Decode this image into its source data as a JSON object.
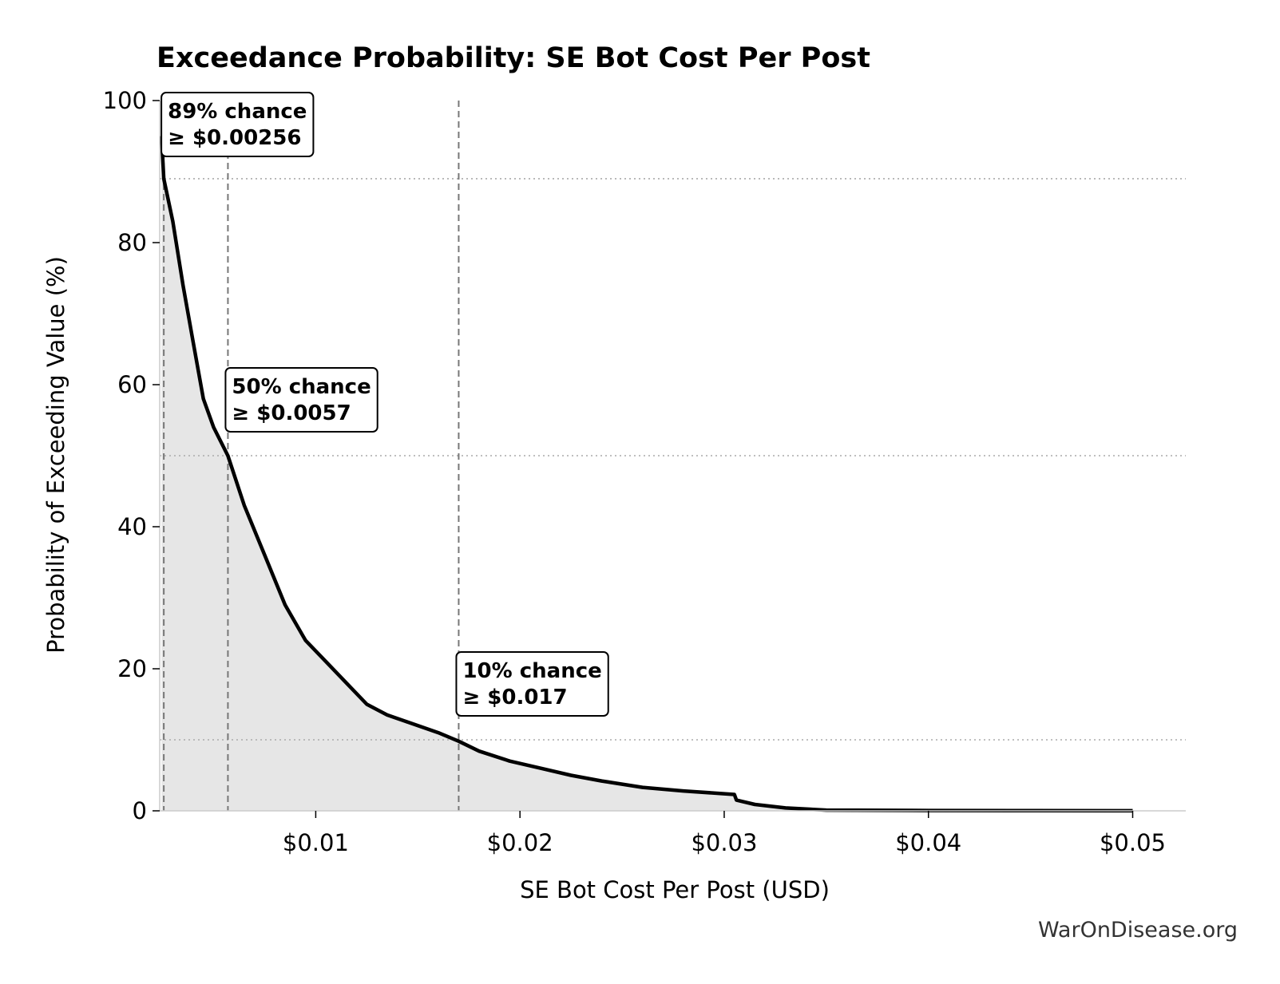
{
  "chart_data": {
    "type": "area",
    "title": "Exceedance Probability: SE Bot Cost Per Post",
    "xlabel": "SE Bot Cost Per Post (USD)",
    "ylabel": "Probability of Exceeding Value (%)",
    "xlim": [
      0.00236,
      0.0526
    ],
    "ylim": [
      0,
      100
    ],
    "x_scale": "linear",
    "grid": false,
    "legend": "none",
    "x_ticks": [
      0.01,
      0.02,
      0.03,
      0.04,
      0.05
    ],
    "x_tick_labels": [
      "$0.01",
      "$0.02",
      "$0.03",
      "$0.04",
      "$0.05"
    ],
    "y_ticks": [
      0,
      20,
      40,
      60,
      80,
      100
    ],
    "y_tick_labels": [
      "0",
      "20",
      "40",
      "60",
      "80",
      "100"
    ],
    "series": [
      {
        "x": [
          0.00245,
          0.00256,
          0.003,
          0.0035,
          0.004,
          0.0045,
          0.005,
          0.0057,
          0.0065,
          0.0075,
          0.0085,
          0.0095,
          0.0105,
          0.0115,
          0.0125,
          0.0135,
          0.0145,
          0.016,
          0.017,
          0.018,
          0.0195,
          0.021,
          0.0225,
          0.024,
          0.026,
          0.028,
          0.03,
          0.0305,
          0.0306,
          0.0315,
          0.033,
          0.035,
          0.04,
          0.045,
          0.05
        ],
        "y": [
          95,
          89,
          83,
          74,
          66,
          58,
          54,
          50,
          43,
          36,
          29,
          24,
          21,
          18,
          15,
          13.5,
          12.5,
          11,
          9.8,
          8.4,
          7,
          6,
          5,
          4.2,
          3.3,
          2.8,
          2.4,
          2.3,
          1.5,
          0.9,
          0.4,
          0.1,
          0.05,
          0.02,
          0.01
        ],
        "color": "#000000",
        "fill_color": "#e6e6e6"
      }
    ],
    "reference_lines": {
      "vertical_x": [
        0.00256,
        0.0057,
        0.017
      ],
      "horizontal_y": [
        89,
        50,
        10
      ]
    },
    "annotations": [
      {
        "line1": "89% chance",
        "line2": "≥ $0.00256",
        "x": 0.00256,
        "y": 89
      },
      {
        "line1": "50% chance",
        "line2": "≥ $0.0057",
        "x": 0.0057,
        "y": 50
      },
      {
        "line1": "10% chance",
        "line2": "≥ $0.017",
        "x": 0.017,
        "y": 10
      }
    ]
  },
  "footer": {
    "watermark": "WarOnDisease.org"
  }
}
